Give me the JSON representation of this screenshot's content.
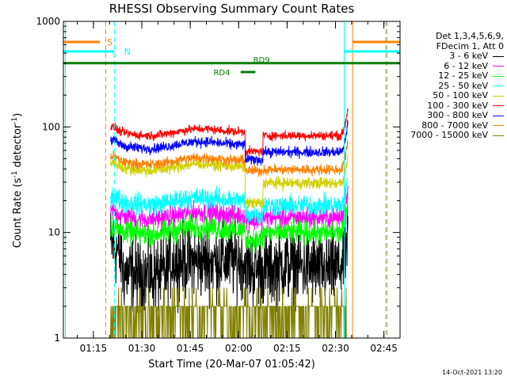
{
  "chart_data": {
    "type": "line",
    "title": "RHESSI Observing Summary Count Rates",
    "xlabel": "Start Time (20-Mar-07 01:05:42)",
    "ylabel_main": "Count Rate (s",
    "ylabel_sup1": "-1",
    "ylabel_mid": " detector",
    "ylabel_sup2": "-1",
    "ylabel_end": ")",
    "yscale": "log",
    "ylim": [
      1,
      1000
    ],
    "xlim_min": [
      65.7,
      170
    ],
    "y_ticks": [
      {
        "v": 1,
        "label": "1"
      },
      {
        "v": 10,
        "label": "10"
      },
      {
        "v": 100,
        "label": "100"
      },
      {
        "v": 1000,
        "label": "1000"
      }
    ],
    "x_ticks": [
      {
        "v": 75,
        "label": "01:15"
      },
      {
        "v": 90,
        "label": "01:30"
      },
      {
        "v": 105,
        "label": "01:45"
      },
      {
        "v": 120,
        "label": "02:00"
      },
      {
        "v": 135,
        "label": "02:15"
      },
      {
        "v": 150,
        "label": "02:30"
      },
      {
        "v": 165,
        "label": "02:45"
      }
    ],
    "legend_header": [
      "Det 1,3,4,5,6,9,",
      "FDecim 1, Att 0"
    ],
    "series": [
      {
        "name": "3 - 6 keV",
        "color": "#000000",
        "base": 5.2,
        "noise": 0.25
      },
      {
        "name": "6 - 12 keV",
        "color": "#ff00ff",
        "base": 14.5,
        "noise": 0.07
      },
      {
        "name": "12 - 25 keV",
        "color": "#00ff00",
        "base": 10.5,
        "noise": 0.08
      },
      {
        "name": "25 - 50 keV",
        "color": "#00ffff",
        "base": 20,
        "noise": 0.07
      },
      {
        "name": "50 - 100 keV",
        "color": "#d0d000",
        "base": 42,
        "noise": 0.04
      },
      {
        "name": "100 - 300 keV",
        "color": "#ff0000",
        "base": 90,
        "noise": 0.03
      },
      {
        "name": "300 - 800 keV",
        "color": "#0000ff",
        "base": 68,
        "noise": 0.035
      },
      {
        "name": "800 - 7000 keV",
        "color": "#ff8000",
        "base": 48,
        "noise": 0.035
      },
      {
        "name": "7000 - 15000 keV",
        "color": "#808000",
        "base": 1.6,
        "noise": 0
      }
    ],
    "flags": [
      {
        "label": "S",
        "color": "#ff8000",
        "y_frac": 0.935
      },
      {
        "label": "N",
        "color": "#00ffff",
        "y_frac": 0.905
      },
      {
        "label": "RD9",
        "color": "#008000",
        "y_frac": 0.868
      },
      {
        "label": "RD4",
        "color": "#008000",
        "y_frac": 0.84
      }
    ],
    "gap_lines": [
      {
        "t": 66.3,
        "color": "#00ffff",
        "style": "solid"
      },
      {
        "t": 78.8,
        "color": "#ff8000",
        "style": "dashed"
      },
      {
        "t": 81.5,
        "color": "#00ffff",
        "style": "dashed"
      },
      {
        "t": 152.7,
        "color": "#00ffff",
        "style": "solid"
      },
      {
        "t": 155.3,
        "color": "#ff8000",
        "style": "solid"
      },
      {
        "t": 165.6,
        "color": "#00ffff",
        "style": "dashed"
      },
      {
        "t": 165.9,
        "color": "#ff8000",
        "style": "dashed"
      }
    ],
    "data_range": [
      80.3,
      153.9
    ]
  },
  "timestamp": "14-Oct-2021 13:20"
}
